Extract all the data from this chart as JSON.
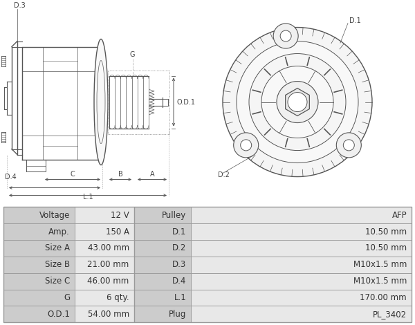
{
  "bg_color": "#ffffff",
  "table_bg_label": "#cccccc",
  "table_bg_value": "#e8e8e8",
  "table_border_color": "#999999",
  "table_text_color": "#333333",
  "table_font_size": 8.5,
  "line_color": "#555555",
  "label_color": "#444444",
  "label_fontsize": 7.0,
  "dim_color": "#555555",
  "table_data": [
    [
      "Voltage",
      "12 V",
      "Pulley",
      "AFP"
    ],
    [
      "Amp.",
      "150 A",
      "D.1",
      "10.50 mm"
    ],
    [
      "Size A",
      "43.00 mm",
      "D.2",
      "10.50 mm"
    ],
    [
      "Size B",
      "21.00 mm",
      "D.3",
      "M10x1.5 mm"
    ],
    [
      "Size C",
      "46.00 mm",
      "D.4",
      "M10x1.5 mm"
    ],
    [
      "G",
      "6 qty.",
      "L.1",
      "170.00 mm"
    ],
    [
      "O.D.1",
      "54.00 mm",
      "Plug",
      "PL_3402"
    ]
  ]
}
